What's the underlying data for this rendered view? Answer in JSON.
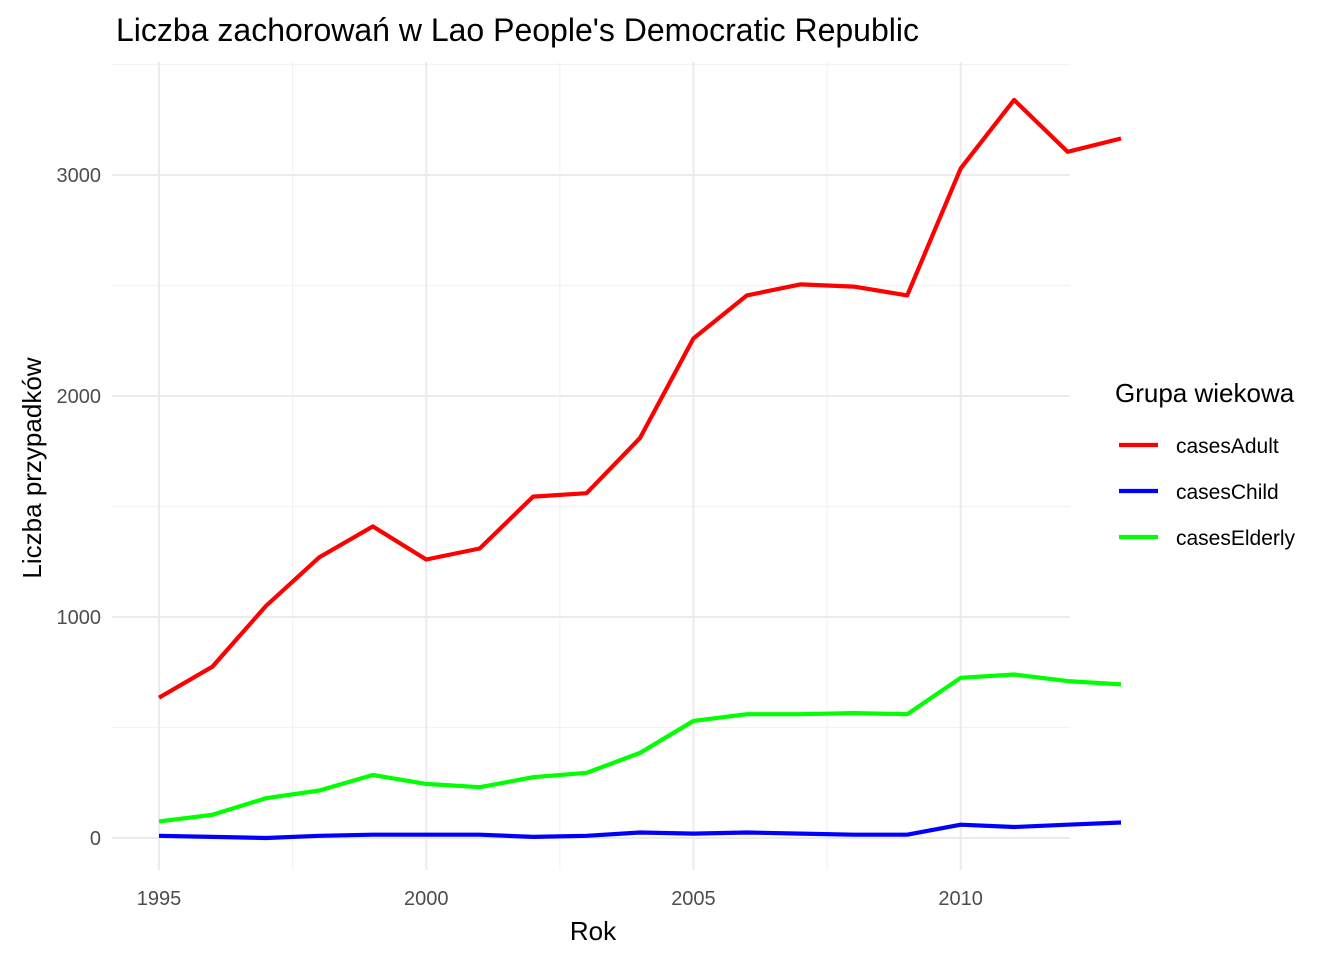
{
  "chart_data": {
    "type": "line",
    "title": "Liczba zachorowań w Lao People's Democratic Republic",
    "xlabel": "Rok",
    "ylabel": "Liczba przypadków",
    "x": [
      1995,
      1996,
      1997,
      1998,
      1999,
      2000,
      2001,
      2002,
      2003,
      2004,
      2005,
      2006,
      2007,
      2008,
      2009,
      2010,
      2011,
      2012,
      2013
    ],
    "x_ticks": [
      "1995",
      "2000",
      "2005",
      "2010"
    ],
    "y_ticks": [
      "0",
      "1000",
      "2000",
      "3000"
    ],
    "xlim": [
      1995,
      2013
    ],
    "ylim": [
      0,
      3340
    ],
    "grid": true,
    "legend": {
      "title": "Grupa wiekowa",
      "position": "right"
    },
    "series": [
      {
        "name": "casesAdult",
        "color": "#ff0000",
        "values": [
          635,
          775,
          1050,
          1270,
          1410,
          1260,
          1310,
          1545,
          1560,
          1810,
          2260,
          2455,
          2505,
          2495,
          2455,
          3030,
          3340,
          3105,
          3165
        ]
      },
      {
        "name": "casesChild",
        "color": "#0000ff",
        "values": [
          10,
          5,
          0,
          10,
          15,
          15,
          15,
          5,
          10,
          25,
          20,
          25,
          20,
          15,
          15,
          60,
          50,
          60,
          70
        ]
      },
      {
        "name": "casesElderly",
        "color": "#00ff00",
        "values": [
          75,
          105,
          180,
          215,
          285,
          245,
          230,
          275,
          295,
          385,
          530,
          560,
          560,
          565,
          560,
          725,
          740,
          710,
          695
        ]
      }
    ]
  }
}
